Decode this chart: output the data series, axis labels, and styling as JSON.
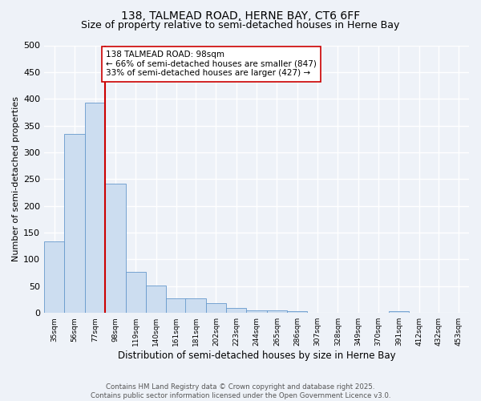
{
  "title1": "138, TALMEAD ROAD, HERNE BAY, CT6 6FF",
  "title2": "Size of property relative to semi-detached houses in Herne Bay",
  "xlabel": "Distribution of semi-detached houses by size in Herne Bay",
  "ylabel": "Number of semi-detached properties",
  "bins": [
    35,
    56,
    77,
    98,
    119,
    140,
    161,
    181,
    202,
    223,
    244,
    265,
    286,
    307,
    328,
    349,
    370,
    391,
    412,
    432,
    453
  ],
  "counts": [
    133,
    335,
    393,
    241,
    77,
    52,
    27,
    27,
    19,
    9,
    5,
    5,
    4,
    0,
    0,
    0,
    0,
    3,
    0,
    0
  ],
  "bar_color": "#ccddf0",
  "bar_edge_color": "#6699cc",
  "vline_x": 98,
  "vline_color": "#cc0000",
  "annotation_text": "138 TALMEAD ROAD: 98sqm\n← 66% of semi-detached houses are smaller (847)\n33% of semi-detached houses are larger (427) →",
  "annotation_box_color": "#ffffff",
  "annotation_box_edge": "#cc0000",
  "ylim": [
    0,
    500
  ],
  "yticks": [
    0,
    50,
    100,
    150,
    200,
    250,
    300,
    350,
    400,
    450,
    500
  ],
  "footer1": "Contains HM Land Registry data © Crown copyright and database right 2025.",
  "footer2": "Contains public sector information licensed under the Open Government Licence v3.0.",
  "bg_color": "#eef2f8",
  "grid_color": "#ffffff",
  "title_fontsize": 10,
  "subtitle_fontsize": 9,
  "ann_fontsize": 7.5
}
